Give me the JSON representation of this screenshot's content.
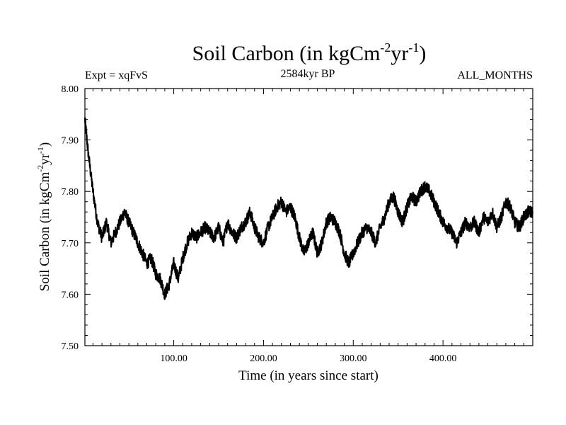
{
  "chart_data": {
    "type": "line",
    "title_main": "Soil Carbon (in kgCm",
    "title_sup1": "-2",
    "title_mid": "yr",
    "title_sup2": "-1",
    "title_end": ")",
    "subtitle_left": "Expt = xqFvS",
    "subtitle_center": "2584kyr BP",
    "subtitle_right": "ALL_MONTHS",
    "xlabel": "Time (in years since start)",
    "ylabel_main": "Soil Carbon (in kgCm",
    "ylabel_sup1": "-2",
    "ylabel_mid": "yr",
    "ylabel_sup2": "-1",
    "ylabel_end": ")",
    "xlim": [
      1,
      500
    ],
    "ylim": [
      7.5,
      8.0
    ],
    "x_ticks": [
      100,
      200,
      300,
      400
    ],
    "x_tick_labels": [
      "100.00",
      "200.00",
      "300.00",
      "400.00"
    ],
    "y_ticks": [
      7.5,
      7.6,
      7.7,
      7.8,
      7.9,
      8.0
    ],
    "y_tick_labels": [
      "7.50",
      "7.60",
      "7.70",
      "7.80",
      "7.90",
      "8.00"
    ],
    "series": [
      {
        "name": "Soil Carbon",
        "color": "#000000",
        "x": [
          1,
          5,
          10,
          15,
          20,
          25,
          30,
          35,
          40,
          45,
          50,
          55,
          60,
          65,
          70,
          75,
          80,
          85,
          90,
          95,
          100,
          105,
          110,
          115,
          120,
          125,
          130,
          135,
          140,
          145,
          150,
          155,
          160,
          165,
          170,
          175,
          180,
          185,
          190,
          195,
          200,
          205,
          210,
          215,
          220,
          225,
          230,
          235,
          240,
          245,
          250,
          255,
          260,
          265,
          270,
          275,
          280,
          285,
          290,
          295,
          300,
          305,
          310,
          315,
          320,
          325,
          330,
          335,
          340,
          345,
          350,
          355,
          360,
          365,
          370,
          375,
          380,
          385,
          390,
          395,
          400,
          405,
          410,
          415,
          420,
          425,
          430,
          435,
          440,
          445,
          450,
          455,
          460,
          465,
          470,
          475,
          480,
          485,
          490,
          495,
          500
        ],
        "values": [
          7.94,
          7.87,
          7.8,
          7.74,
          7.71,
          7.74,
          7.7,
          7.72,
          7.74,
          7.76,
          7.74,
          7.72,
          7.7,
          7.68,
          7.66,
          7.67,
          7.64,
          7.63,
          7.6,
          7.62,
          7.66,
          7.63,
          7.67,
          7.7,
          7.72,
          7.71,
          7.72,
          7.73,
          7.72,
          7.71,
          7.73,
          7.7,
          7.74,
          7.72,
          7.71,
          7.73,
          7.74,
          7.76,
          7.73,
          7.71,
          7.7,
          7.73,
          7.75,
          7.77,
          7.78,
          7.76,
          7.77,
          7.75,
          7.71,
          7.68,
          7.7,
          7.72,
          7.68,
          7.7,
          7.74,
          7.75,
          7.74,
          7.72,
          7.68,
          7.66,
          7.68,
          7.7,
          7.72,
          7.73,
          7.72,
          7.7,
          7.73,
          7.75,
          7.78,
          7.79,
          7.76,
          7.74,
          7.77,
          7.79,
          7.78,
          7.8,
          7.81,
          7.8,
          7.78,
          7.76,
          7.74,
          7.73,
          7.72,
          7.7,
          7.72,
          7.74,
          7.73,
          7.74,
          7.72,
          7.75,
          7.74,
          7.76,
          7.73,
          7.75,
          7.78,
          7.77,
          7.74,
          7.73,
          7.75,
          7.76,
          7.76
        ]
      }
    ]
  }
}
